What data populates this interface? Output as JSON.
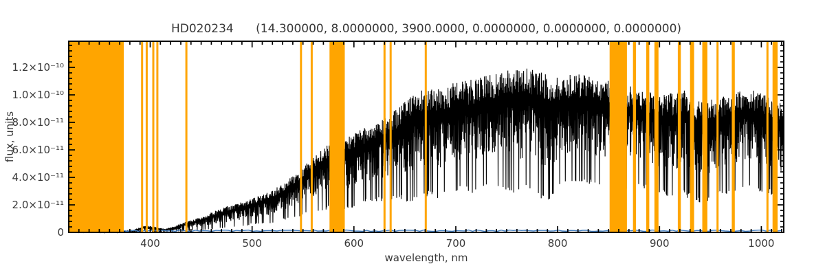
{
  "window": {
    "background": "#ffffff"
  },
  "chart_data": {
    "type": "line",
    "title": "HD020234      (14.300000, 8.0000000, 3900.0000, 0.0000000, 0.0000000, 0.0000000)",
    "xlabel": "wavelength, nm",
    "ylabel": "flux, units",
    "grid": "off",
    "legend": "none",
    "xlim_nm": [
      320,
      1022
    ],
    "ylim_1e11": [
      0,
      13.9
    ],
    "x_minor_step_nm": 10,
    "y_minor_step_1e11": 0.4,
    "x_major_ticks": [
      {
        "value": 400,
        "label": "400"
      },
      {
        "value": 500,
        "label": "500"
      },
      {
        "value": 600,
        "label": "600"
      },
      {
        "value": 700,
        "label": "700"
      },
      {
        "value": 800,
        "label": "800"
      },
      {
        "value": 900,
        "label": "900"
      },
      {
        "value": 1000,
        "label": "1000"
      }
    ],
    "y_major_ticks": [
      {
        "value_1e11": 0,
        "label": "0"
      },
      {
        "value_1e11": 2,
        "label": "2.0×10⁻¹¹"
      },
      {
        "value_1e11": 4,
        "label": "4.0×10⁻¹¹"
      },
      {
        "value_1e11": 6,
        "label": "6.0×10⁻¹¹"
      },
      {
        "value_1e11": 8,
        "label": "8.0×10⁻¹¹"
      },
      {
        "value_1e11": 10,
        "label": "1.0×10⁻¹⁰"
      },
      {
        "value_1e11": 12,
        "label": "1.2×10⁻¹⁰"
      }
    ],
    "colors": {
      "spectrum": "#000000",
      "masked_bands": "#ffa500",
      "reference_line": "#4682c4",
      "frame": "#000000",
      "text": "#383838",
      "background": "#ffffff"
    },
    "masked_bands_nm": [
      [
        320,
        374
      ],
      [
        391,
        393
      ],
      [
        395.5,
        397.5
      ],
      [
        402,
        404
      ],
      [
        406,
        408
      ],
      [
        434.5,
        436.5
      ],
      [
        547,
        549
      ],
      [
        557.5,
        559.5
      ],
      [
        576,
        591
      ],
      [
        629,
        631
      ],
      [
        635,
        637
      ],
      [
        669.5,
        671.5
      ],
      [
        851,
        868
      ],
      [
        874,
        877
      ],
      [
        887,
        890
      ],
      [
        895,
        899
      ],
      [
        918,
        921
      ],
      [
        930,
        934
      ],
      [
        942,
        947
      ],
      [
        956,
        958
      ],
      [
        971,
        974
      ],
      [
        1005,
        1007
      ],
      [
        1011,
        1016
      ]
    ],
    "series": [
      {
        "name": "observed spectrum",
        "color": "#000000",
        "style": "dense-noise",
        "envelope": {
          "wavelength_nm": [
            320,
            380,
            395,
            405,
            415,
            425,
            435,
            445,
            455,
            465,
            475,
            485,
            495,
            505,
            515,
            525,
            535,
            545,
            555,
            565,
            575,
            585,
            595,
            605,
            615,
            625,
            635,
            645,
            655,
            665,
            675,
            685,
            695,
            705,
            715,
            725,
            735,
            745,
            755,
            765,
            775,
            785,
            795,
            805,
            815,
            825,
            835,
            845,
            855,
            865,
            875,
            885,
            895,
            905,
            915,
            925,
            935,
            945,
            955,
            965,
            975,
            985,
            995,
            1005,
            1015,
            1022
          ],
          "upper_flux_1e11": [
            0.05,
            0.1,
            0.5,
            0.4,
            0.25,
            0.5,
            0.8,
            1.0,
            1.3,
            1.6,
            1.9,
            2.1,
            2.3,
            2.6,
            2.9,
            3.3,
            3.8,
            4.4,
            5.1,
            5.8,
            6.4,
            6.8,
            7.0,
            7.4,
            7.8,
            8.2,
            8.6,
            9.2,
            9.8,
            10.3,
            10.5,
            10.4,
            10.8,
            11.0,
            11.1,
            11.3,
            11.5,
            11.7,
            11.9,
            12.0,
            11.9,
            11.6,
            11.3,
            11.4,
            11.5,
            11.6,
            11.4,
            11.2,
            11.0,
            10.8,
            10.6,
            10.4,
            10.2,
            10.0,
            10.2,
            10.4,
            9.8,
            9.4,
            9.8,
            10.2,
            10.4,
            10.5,
            10.3,
            10.0,
            9.7,
            9.4
          ],
          "lower_flux_1e11": [
            0,
            0,
            0,
            0,
            0,
            0.05,
            0.1,
            0.15,
            0.2,
            0.25,
            0.3,
            0.4,
            0.5,
            0.6,
            0.6,
            0.8,
            0.9,
            1.1,
            1.3,
            1.5,
            1.7,
            1.8,
            1.6,
            2.0,
            2.2,
            2.3,
            2.2,
            2.4,
            2.0,
            2.6,
            2.6,
            2.4,
            2.8,
            3.0,
            2.8,
            3.2,
            3.4,
            3.3,
            2.6,
            2.8,
            3.2,
            2.2,
            2.4,
            3.4,
            3.6,
            3.5,
            3.4,
            3.2,
            3.0,
            3.0,
            3.4,
            3.2,
            2.8,
            2.6,
            2.4,
            2.6,
            2.2,
            2.0,
            2.4,
            2.8,
            3.0,
            3.2,
            3.0,
            2.8,
            2.6,
            2.4
          ]
        }
      },
      {
        "name": "reference zero-level line",
        "color": "#4682c4",
        "style": "flat",
        "flux_1e11": 0.12
      }
    ]
  }
}
